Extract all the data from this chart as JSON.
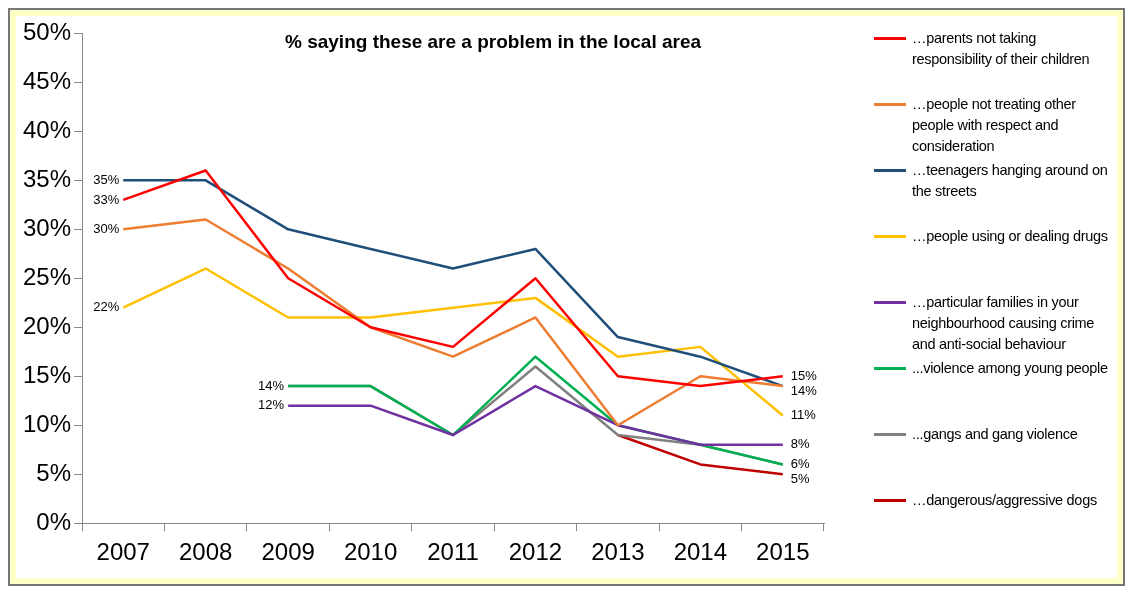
{
  "chart_data": {
    "type": "line",
    "title": "% saying these are a problem in the local area",
    "categories": [
      "2007",
      "2008",
      "2009",
      "2010",
      "2011",
      "2012",
      "2013",
      "2014",
      "2015"
    ],
    "ylim": [
      0,
      50
    ],
    "yticks": [
      {
        "value": 0,
        "label": "0%"
      },
      {
        "value": 5,
        "label": "5%"
      },
      {
        "value": 10,
        "label": "10%"
      },
      {
        "value": 15,
        "label": "15%"
      },
      {
        "value": 20,
        "label": "20%"
      },
      {
        "value": 25,
        "label": "25%"
      },
      {
        "value": 30,
        "label": "30%"
      },
      {
        "value": 35,
        "label": "35%"
      },
      {
        "value": 40,
        "label": "40%"
      },
      {
        "value": 45,
        "label": "45%"
      },
      {
        "value": 50,
        "label": "50%"
      }
    ],
    "grid": false,
    "legend": "right",
    "marker": "none",
    "line_style": "solid",
    "series": [
      {
        "name": "…parents not taking responsibility of their children",
        "color": "#ff0000",
        "values": [
          33,
          36,
          25,
          20,
          18,
          25,
          15,
          14,
          15
        ],
        "value_labels": [
          "33%",
          null,
          null,
          null,
          null,
          null,
          null,
          null,
          "15%"
        ]
      },
      {
        "name": "…people not treating other people with respect and consideration",
        "color": "#ed7d31",
        "values": [
          30,
          31,
          26,
          20,
          17,
          21,
          10,
          15,
          14
        ],
        "value_labels": [
          "30%",
          null,
          null,
          null,
          null,
          null,
          null,
          null,
          null
        ]
      },
      {
        "name": "…teenagers hanging around on the streets",
        "color": "#1f4e79",
        "values": [
          35,
          35,
          30,
          28,
          26,
          28,
          19,
          17,
          14
        ],
        "value_labels": [
          "35%",
          null,
          null,
          null,
          null,
          null,
          null,
          null,
          "14%"
        ]
      },
      {
        "name": "…people using or dealing drugs",
        "color": "#ffc000",
        "values": [
          22,
          26,
          21,
          21,
          22,
          23,
          17,
          18,
          11
        ],
        "value_labels": [
          "22%",
          null,
          null,
          null,
          null,
          null,
          null,
          null,
          "11%"
        ]
      },
      {
        "name": "…particular families in your neighbourhood causing crime and anti-social behaviour",
        "color": "#7030a0",
        "values": [
          null,
          null,
          12,
          12,
          9,
          14,
          10,
          8,
          8
        ],
        "value_labels": [
          null,
          null,
          "12%",
          null,
          null,
          null,
          null,
          null,
          "8%"
        ]
      },
      {
        "name": "...violence among young people",
        "color": "#00b050",
        "values": [
          null,
          null,
          14,
          14,
          9,
          17,
          10,
          8,
          6
        ],
        "value_labels": [
          null,
          null,
          null,
          null,
          null,
          null,
          null,
          null,
          null
        ]
      },
      {
        "name": "...gangs and gang violence",
        "color": "#808080",
        "values": [
          null,
          null,
          14,
          14,
          9,
          16,
          9,
          8,
          6
        ],
        "value_labels": [
          null,
          null,
          "14%",
          null,
          null,
          null,
          null,
          null,
          "6%"
        ]
      },
      {
        "name": "…dangerous/aggressive dogs",
        "color": "#c00000",
        "values": [
          null,
          null,
          null,
          null,
          null,
          null,
          9,
          6,
          5
        ],
        "value_labels": [
          null,
          null,
          null,
          null,
          null,
          null,
          null,
          null,
          "5%"
        ]
      }
    ]
  }
}
